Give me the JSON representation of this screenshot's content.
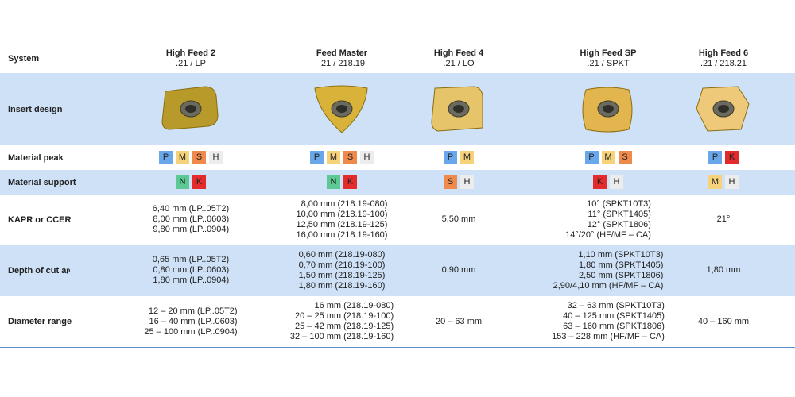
{
  "header_label": "System",
  "columns": [
    {
      "name": "High Feed 2",
      "code": ".21 / LP"
    },
    {
      "name": "Feed Master",
      "code": ".21 / 218.19"
    },
    {
      "name": "High Feed 4",
      "code": ".21 / LO"
    },
    {
      "name": "High Feed SP",
      "code": ".21 / SPKT"
    },
    {
      "name": "High Feed 6",
      "code": ".21 / 218.21"
    }
  ],
  "rows": [
    {
      "label": "Insert design"
    },
    {
      "label": "Material peak",
      "materials": [
        [
          "P",
          "M",
          "S",
          "H"
        ],
        [
          "P",
          "M",
          "S",
          "H"
        ],
        [
          "P",
          "M"
        ],
        [
          "P",
          "M",
          "S"
        ],
        [
          "P",
          "K"
        ]
      ]
    },
    {
      "label": "Material support",
      "materials": [
        [
          "N",
          "K"
        ],
        [
          "N",
          "K"
        ],
        [
          "S",
          "H"
        ],
        [
          "K",
          "H"
        ],
        [
          "M",
          "H"
        ]
      ]
    },
    {
      "label": "KAPR or CCER",
      "cells": [
        [
          "6,40 mm (LP..05T2)",
          "8,00 mm (LP..0603)",
          "9,80 mm (LP..0904)"
        ],
        [
          "8,00 mm (218.19-080)",
          "10,00 mm (218.19-100)",
          "12,50 mm (218.19-125)",
          "16,00 mm (218.19-160)"
        ],
        [
          "5,50 mm"
        ],
        [
          "10° (SPKT10T3)",
          "11° (SPKT1405)",
          "12° (SPKT1806)",
          "14°/20° (HF/MF – CA)"
        ],
        [
          "21°"
        ]
      ]
    },
    {
      "label": "Depth of cut a",
      "label_subscript": "p",
      "cells": [
        [
          "0,65 mm (LP..05T2)",
          "0,80 mm (LP..0603)",
          "1,80 mm (LP..0904)"
        ],
        [
          "0,60 mm (218.19-080)",
          "0,70 mm (218.19-100)",
          "1,50 mm (218.19-125)",
          "1,80 mm (218.19-160)"
        ],
        [
          "0,90 mm"
        ],
        [
          "1,10 mm (SPKT10T3)",
          "1,80 mm (SPKT1405)",
          "2,50 mm (SPKT1806)",
          "2,90/4,10 mm (HF/MF – CA)"
        ],
        [
          "1,80 mm"
        ]
      ]
    },
    {
      "label": "Diameter range",
      "cells": [
        [
          "12 – 20 mm (LP..05T2)",
          "16 – 40 mm (LP..0603)",
          "25 – 100 mm (LP..0904)"
        ],
        [
          "16 mm (218.19-080)",
          "20 – 25 mm (218.19-100)",
          "25 – 42 mm (218.19-125)",
          "32 – 100 mm (218.19-160)"
        ],
        [
          "20 – 63 mm"
        ],
        [
          "32 – 63 mm (SPKT10T3)",
          "40 – 125 mm (SPKT1405)",
          "63 – 160 mm (SPKT1806)",
          "153 – 228 mm (HF/MF – CA)"
        ],
        [
          "40 – 160 mm"
        ]
      ]
    }
  ]
}
